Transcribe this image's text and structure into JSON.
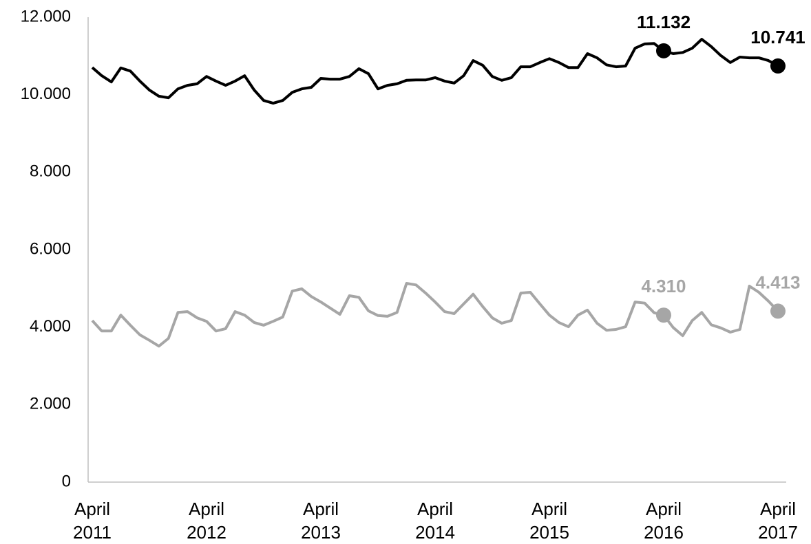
{
  "chart_data": {
    "type": "line",
    "categories": [
      "April 2011",
      null,
      null,
      null,
      null,
      null,
      null,
      null,
      null,
      null,
      null,
      null,
      "April 2012",
      null,
      null,
      null,
      null,
      null,
      null,
      null,
      null,
      null,
      null,
      null,
      "April 2013",
      null,
      null,
      null,
      null,
      null,
      null,
      null,
      null,
      null,
      null,
      null,
      "April 2014",
      null,
      null,
      null,
      null,
      null,
      null,
      null,
      null,
      null,
      null,
      null,
      "April 2015",
      null,
      null,
      null,
      null,
      null,
      null,
      null,
      null,
      null,
      null,
      null,
      "April 2016",
      null,
      null,
      null,
      null,
      null,
      null,
      null,
      null,
      null,
      null,
      null,
      "April 2017"
    ],
    "series": [
      {
        "color": "#000000",
        "values": [
          10700,
          10490,
          10330,
          10690,
          10610,
          10350,
          10120,
          9960,
          9920,
          10150,
          10240,
          10280,
          10470,
          10350,
          10240,
          10350,
          10490,
          10120,
          9850,
          9780,
          9850,
          10060,
          10150,
          10190,
          10420,
          10400,
          10400,
          10470,
          10670,
          10540,
          10150,
          10240,
          10280,
          10370,
          10380,
          10380,
          10440,
          10350,
          10300,
          10490,
          10880,
          10760,
          10470,
          10370,
          10440,
          10720,
          10720,
          10830,
          10930,
          10830,
          10700,
          10700,
          11060,
          10950,
          10770,
          10720,
          10740,
          11200,
          11310,
          11320,
          11132,
          11060,
          11090,
          11200,
          11430,
          11240,
          11010,
          10830,
          10970,
          10950,
          10950,
          10880,
          10741
        ],
        "value_labels": [
          null,
          null,
          null,
          null,
          null,
          null,
          null,
          null,
          null,
          null,
          null,
          null,
          null,
          null,
          null,
          null,
          null,
          null,
          null,
          null,
          null,
          null,
          null,
          null,
          null,
          null,
          null,
          null,
          null,
          null,
          null,
          null,
          null,
          null,
          null,
          null,
          null,
          null,
          null,
          null,
          null,
          null,
          null,
          null,
          null,
          null,
          null,
          null,
          null,
          null,
          null,
          null,
          null,
          null,
          null,
          null,
          null,
          null,
          null,
          null,
          "11.132",
          null,
          null,
          null,
          null,
          null,
          null,
          null,
          null,
          null,
          null,
          null,
          "10.741"
        ]
      },
      {
        "color": "#a6a6a6",
        "values": [
          4170,
          3900,
          3900,
          4310,
          4050,
          3800,
          3660,
          3510,
          3710,
          4380,
          4400,
          4240,
          4150,
          3900,
          3960,
          4400,
          4310,
          4120,
          4050,
          4150,
          4260,
          4930,
          4990,
          4790,
          4650,
          4490,
          4330,
          4810,
          4770,
          4420,
          4300,
          4280,
          4380,
          5130,
          5090,
          4880,
          4650,
          4400,
          4350,
          4600,
          4850,
          4530,
          4240,
          4100,
          4170,
          4880,
          4900,
          4600,
          4310,
          4120,
          4010,
          4310,
          4440,
          4100,
          3920,
          3940,
          4010,
          4650,
          4620,
          4370,
          4310,
          3990,
          3780,
          4170,
          4380,
          4060,
          3980,
          3870,
          3940,
          5060,
          4900,
          4670,
          4413
        ],
        "value_labels": [
          null,
          null,
          null,
          null,
          null,
          null,
          null,
          null,
          null,
          null,
          null,
          null,
          null,
          null,
          null,
          null,
          null,
          null,
          null,
          null,
          null,
          null,
          null,
          null,
          null,
          null,
          null,
          null,
          null,
          null,
          null,
          null,
          null,
          null,
          null,
          null,
          null,
          null,
          null,
          null,
          null,
          null,
          null,
          null,
          null,
          null,
          null,
          null,
          null,
          null,
          null,
          null,
          null,
          null,
          null,
          null,
          null,
          null,
          null,
          null,
          "4.310",
          null,
          null,
          null,
          null,
          null,
          null,
          null,
          null,
          null,
          null,
          null,
          "4.413"
        ]
      }
    ],
    "ylim": [
      0,
      12000
    ],
    "yticks": [
      0,
      {
        "value": 2000,
        "label": "2.000"
      },
      {
        "value": 4000,
        "label": "4.000"
      },
      {
        "value": 6000,
        "label": "6.000"
      },
      {
        "value": 8000,
        "label": "8.000"
      },
      {
        "value": 10000,
        "label": "10.000"
      },
      {
        "value": 12000,
        "label": "12.000"
      }
    ],
    "grid": false
  }
}
